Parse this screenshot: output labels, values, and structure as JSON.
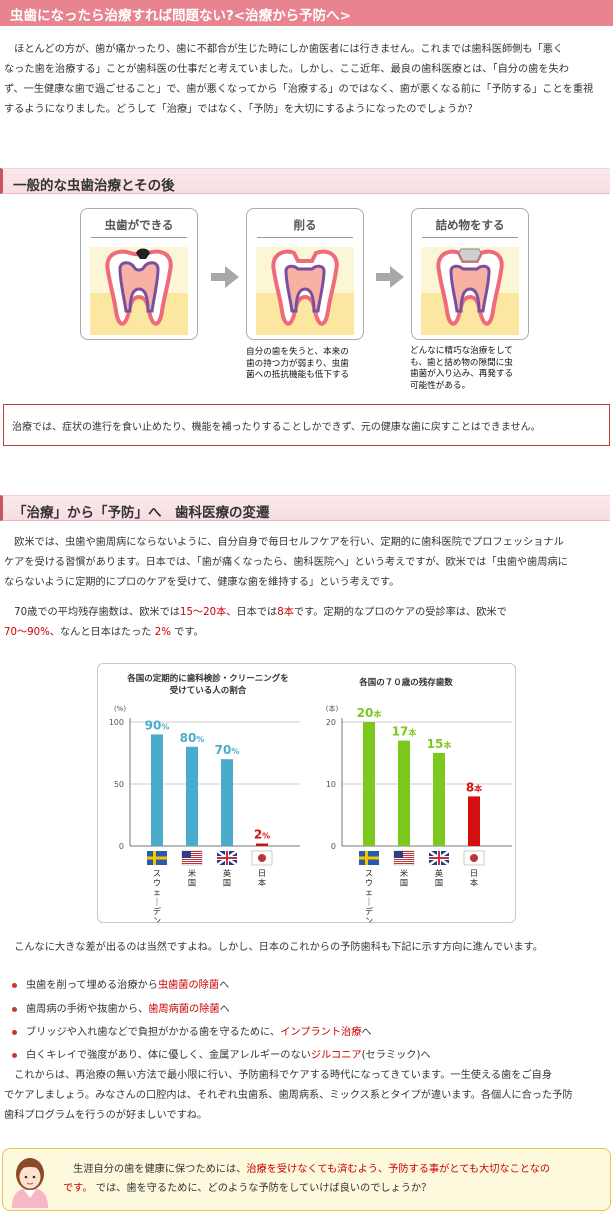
{
  "header": {
    "title": "虫歯になったら治療すれば問題ない?<治療から予防へ>"
  },
  "intro": {
    "lines": [
      "　ほとんどの方が、歯が痛かったり、歯に不都合が生じた時にしか歯医者には行きません。これまでは歯科医師側も「悪く",
      "なった歯を治療する」ことが歯科医の仕事だと考えていました。しかし、ここ近年、最良の歯科医療とは、「自分の歯を失わ",
      "ず、一生健康な歯で過ごせること」で、歯が悪くなってから「治療する」のではなく、歯が悪くなる前に「予防する」ことを重視",
      "するようになりました。どうして「治療」ではなく、「予防」を大切にするようになったのでしょうか？"
    ]
  },
  "section1": {
    "title": "一般的な虫歯治療とその後",
    "steps": [
      {
        "title": "虫歯ができる"
      },
      {
        "title": "削る",
        "caption": [
          "自分の歯を失うと、本来の",
          "歯の持つ力が弱まり、虫歯",
          "菌への抵抗機能も低下する"
        ]
      },
      {
        "title": "詰め物をする",
        "caption": [
          "どんなに精巧な治療をして",
          "も、歯と詰め物の隙間に虫",
          "歯菌が入り込み、再発する",
          "可能性がある。"
        ]
      }
    ],
    "note": "治療では、症状の進行を食い止めたり、機能を補ったりすることしかできず、元の健康な歯に戻すことはできません。"
  },
  "section2": {
    "title": "「治療」から「予防」へ　歯科医療の変遷",
    "para1": [
      "　欧米では、虫歯や歯周病にならないように、自分自身で毎日セルフケアを行い、定期的に歯科医院でプロフェッショナル",
      "ケアを受ける習慣があります。日本では、「歯が痛くなったら、歯科医院へ」という考えですが、欧米では「虫歯や歯周病に",
      "ならないように定期的にプロのケアを受けて、健康な歯を維持する」という考えです。"
    ],
    "para2": {
      "a": "　70歳での平均残存歯数は、欧米では",
      "b": "15～20本",
      "c": "、日本では",
      "d": "8本",
      "e": "です。定期的なプロのケアの受診率は、欧米で",
      "f": "70～90%",
      "g": "、なんと日本はたった ",
      "h": "2%",
      "i": " です。"
    },
    "after_chart": "　こんなに大きな差が出るのは当然ですよね。しかし、日本のこれからの予防歯科も下記に示す方向に進んでいます。",
    "bullets": [
      {
        "pre": "虫歯を削って埋める治療から",
        "hl": "虫歯菌の除菌",
        "post": "へ"
      },
      {
        "pre": "歯周病の手術や抜歯から、",
        "hl": "歯周病菌の除菌",
        "post": "へ"
      },
      {
        "pre": "ブリッジや入れ歯などで負担がかかる歯を守るために、",
        "hl": "インプラント治療",
        "post": "へ"
      },
      {
        "pre": "白くキレイで強度があり、体に優しく、金属アレルギーのない",
        "hl": "ジルコニア",
        "post": "(セラミック)へ"
      }
    ],
    "closing": [
      "　これからは、再治療の無い方法で最小限に行い、予防歯科でケアする時代になってきています。一生使える歯をご自身",
      "でケアしましょう。みなさんの口腔内は、それぞれ虫歯系、歯周病系、ミックス系とタイプが違います。各個人に合った予防",
      "歯科プログラムを行うのが好ましいですね。"
    ]
  },
  "footer": {
    "pre": "　生涯自分の歯を健康に保つためには、",
    "hl1": "治療を受けなくても済むよう、予防する事がとても大切なことなの",
    "hl2": "です。",
    "post": " では、歯を守るために、どのような予防をしていけば良いのでしょうか？"
  },
  "colors": {
    "accent": "#e7848f",
    "highlight": "#cc0000",
    "bar_blue": "#4aaccd",
    "bar_green": "#7cc81e",
    "bar_red": "#d40f0f"
  },
  "chart_data": [
    {
      "type": "bar",
      "title": "各国の定期的に歯科検診・クリーニングを受けている人の割合",
      "title_lines": [
        "各国の定期的に歯科検診・クリーニングを",
        "受けている人の割合"
      ],
      "unit": "(%)",
      "ylim": [
        0,
        100
      ],
      "yticks": [
        "0",
        "50",
        "100"
      ],
      "categories": [
        "スウェーデン",
        "米国",
        "英国",
        "日本"
      ],
      "category_lines": [
        [
          "ス",
          "ウ",
          "ェ",
          "｜",
          "デ",
          "ン"
        ],
        [
          "米",
          "国"
        ],
        [
          "英",
          "国"
        ],
        [
          "日",
          "本"
        ]
      ],
      "values": [
        90,
        80,
        70,
        2
      ],
      "value_labels": [
        "90",
        "80",
        "70",
        "2"
      ],
      "value_suffix": "%"
    },
    {
      "type": "bar",
      "title": "各国の７０歳の残存歯数",
      "title_lines": [
        "各国の７０歳の残存歯数"
      ],
      "unit": "(本)",
      "ylim": [
        0,
        20
      ],
      "yticks": [
        "0",
        "10",
        "20"
      ],
      "categories": [
        "スウェーデン",
        "米国",
        "英国",
        "日本"
      ],
      "category_lines": [
        [
          "ス",
          "ウ",
          "ェ",
          "｜",
          "デ",
          "ン"
        ],
        [
          "米",
          "国"
        ],
        [
          "英",
          "国"
        ],
        [
          "日",
          "本"
        ]
      ],
      "values": [
        20,
        17,
        15,
        8
      ],
      "value_labels": [
        "20",
        "17",
        "15",
        "8"
      ],
      "value_suffix": "本"
    }
  ]
}
